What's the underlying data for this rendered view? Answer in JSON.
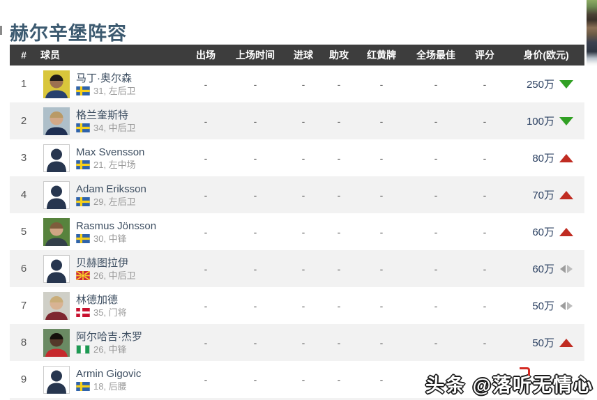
{
  "page": {
    "title": "赫尔辛堡阵容"
  },
  "watermark": {
    "text": "头条 @落听无情心"
  },
  "colors": {
    "title": "#3c5a70",
    "header_bg": "#3d3d3d",
    "header_text": "#ffffff",
    "row_alt_bg": "#f2f2f2",
    "player_name": "#3d4e61",
    "sub_text": "#999999",
    "market_value": "#2c4162",
    "trend_up": "#c02c22",
    "trend_down": "#31a024",
    "trend_flat_left": "#9d9d9d",
    "trend_flat_right": "#bcbcbc",
    "placeholder_silhouette": "#27364f"
  },
  "flag_colors": {
    "sweden": {
      "bg": "#2f63ab",
      "cross": "#f7d019"
    },
    "denmark": {
      "bg": "#c8102e",
      "cross": "#ffffff"
    },
    "nigeria": {
      "green": "#1d9a53",
      "white": "#ffffff"
    },
    "macedonia": {
      "bg": "#ce2939",
      "sun": "#f8d22a"
    }
  },
  "table": {
    "columns": [
      "#",
      "球员",
      "出场",
      "上场时间",
      "进球",
      "助攻",
      "红黄牌",
      "全场最佳",
      "评分",
      "身价(欧元)"
    ],
    "rows": [
      {
        "num": "1",
        "name": "马丁·奥尔森",
        "flag": "sweden",
        "info": "31, 左后卫",
        "avatar": {
          "type": "photo",
          "bg": "#d9c63b",
          "skin": "#9c7150",
          "hair": "#1f1b18",
          "shirt": "#27406e"
        },
        "stats": [
          "-",
          "-",
          "-",
          "-",
          "-",
          "-",
          "-"
        ],
        "value": "250万",
        "trend": "down"
      },
      {
        "num": "2",
        "name": "格兰奎斯特",
        "flag": "sweden",
        "info": "34, 中后卫",
        "avatar": {
          "type": "photo",
          "bg": "#aebfc9",
          "skin": "#d2a887",
          "hair": "#b99a66",
          "shirt": "#1e2f52"
        },
        "stats": [
          "-",
          "-",
          "-",
          "-",
          "-",
          "-",
          "-"
        ],
        "value": "100万",
        "trend": "down"
      },
      {
        "num": "3",
        "name": "Max Svensson",
        "flag": "sweden",
        "info": "21, 左中场",
        "avatar": {
          "type": "placeholder"
        },
        "stats": [
          "-",
          "-",
          "-",
          "-",
          "-",
          "-",
          "-"
        ],
        "value": "80万",
        "trend": "up"
      },
      {
        "num": "4",
        "name": "Adam Eriksson",
        "flag": "sweden",
        "info": "29, 左后卫",
        "avatar": {
          "type": "placeholder"
        },
        "stats": [
          "-",
          "-",
          "-",
          "-",
          "-",
          "-",
          "-"
        ],
        "value": "70万",
        "trend": "up"
      },
      {
        "num": "5",
        "name": "Rasmus Jönsson",
        "flag": "sweden",
        "info": "30, 中锋",
        "avatar": {
          "type": "photo",
          "bg": "#57833d",
          "skin": "#cfa584",
          "hair": "#7d5c3c",
          "shirt": "#33404a"
        },
        "stats": [
          "-",
          "-",
          "-",
          "-",
          "-",
          "-",
          "-"
        ],
        "value": "60万",
        "trend": "up"
      },
      {
        "num": "6",
        "name": "贝赫图拉伊",
        "flag": "macedonia",
        "info": "26, 中后卫",
        "avatar": {
          "type": "placeholder"
        },
        "stats": [
          "-",
          "-",
          "-",
          "-",
          "-",
          "-",
          "-"
        ],
        "value": "60万",
        "trend": "flat"
      },
      {
        "num": "7",
        "name": "林德加德",
        "flag": "denmark",
        "info": "35, 门将",
        "avatar": {
          "type": "photo",
          "bg": "#cfcfc7",
          "skin": "#d8b393",
          "hair": "#c9ad79",
          "shirt": "#7e2730"
        },
        "stats": [
          "-",
          "-",
          "-",
          "-",
          "-",
          "-",
          "-"
        ],
        "value": "50万",
        "trend": "flat"
      },
      {
        "num": "8",
        "name": "阿尔哈吉·杰罗",
        "flag": "nigeria",
        "info": "26, 中锋",
        "avatar": {
          "type": "photo",
          "bg": "#6a8a63",
          "skin": "#54382a",
          "hair": "#15100c",
          "shirt": "#c6292d"
        },
        "stats": [
          "-",
          "-",
          "-",
          "-",
          "-",
          "-",
          "-"
        ],
        "value": "50万",
        "trend": "up"
      },
      {
        "num": "9",
        "name": "Armin Gigovic",
        "flag": "sweden",
        "info": "18, 后腰",
        "avatar": {
          "type": "placeholder"
        },
        "stats": [
          "-",
          "-",
          "-",
          "-",
          "-",
          "-",
          "-"
        ],
        "value": "",
        "trend": "none"
      }
    ]
  }
}
